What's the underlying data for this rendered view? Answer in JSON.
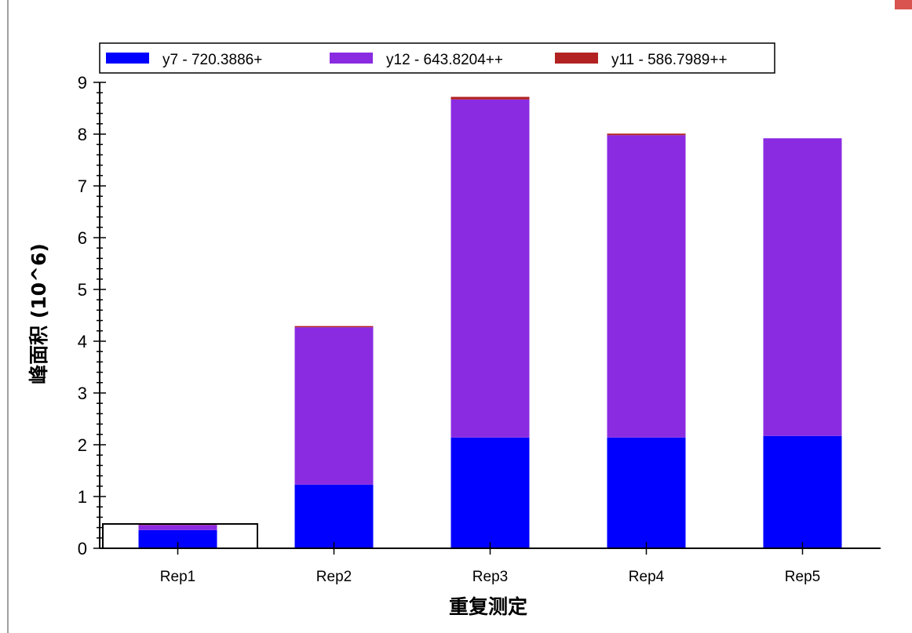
{
  "chart_data": {
    "type": "bar",
    "stacked": true,
    "title": "",
    "xlabel": "重复测定",
    "ylabel": "峰面积 (10^6)",
    "ylim": [
      0,
      9
    ],
    "yticks": [
      "0",
      "1",
      "2",
      "3",
      "4",
      "5",
      "6",
      "7",
      "8",
      "9"
    ],
    "categories": [
      "Rep1",
      "Rep2",
      "Rep3",
      "Rep4",
      "Rep5"
    ],
    "series": [
      {
        "name": "y7 - 720.3886+",
        "color": "#0000ff",
        "values": [
          0.35,
          1.23,
          2.14,
          2.14,
          2.17
        ]
      },
      {
        "name": "y12 - 643.8204++",
        "color": "#8a2be2",
        "values": [
          0.1,
          3.04,
          6.53,
          5.84,
          5.75
        ]
      },
      {
        "name": "y11 - 586.7989++",
        "color": "#b22222",
        "values": [
          0.005,
          0.005,
          0.05,
          0.03,
          0.0
        ]
      }
    ],
    "selected_category": "Rep1",
    "legend_position": "top",
    "grid": false
  }
}
